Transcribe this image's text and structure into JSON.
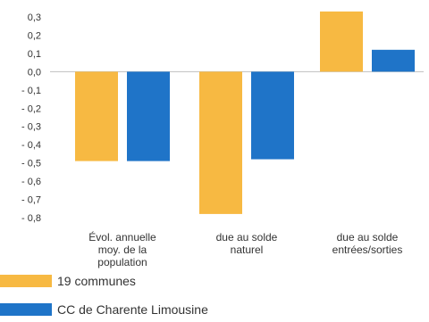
{
  "chart_data": {
    "type": "bar",
    "categories": [
      [
        "Évol. annuelle",
        "moy. de la",
        "population"
      ],
      [
        "due au solde",
        "naturel"
      ],
      [
        "due au solde",
        "entrées/sorties"
      ]
    ],
    "series": [
      {
        "name": "19 communes",
        "color": "#F7B942",
        "values": [
          -0.49,
          -0.78,
          0.33
        ]
      },
      {
        "name": "CC de Charente Limousine",
        "color": "#1F74C8",
        "values": [
          -0.49,
          -0.48,
          0.12
        ]
      }
    ],
    "y_ticks": [
      "0,3",
      "0,2",
      "0,1",
      "0,0",
      "- 0,1",
      "- 0,2",
      "- 0,3",
      "- 0,4",
      "- 0,5",
      "- 0,6",
      "- 0,7",
      "- 0,8"
    ],
    "y_tick_values": [
      0.3,
      0.2,
      0.1,
      0.0,
      -0.1,
      -0.2,
      -0.3,
      -0.4,
      -0.5,
      -0.6,
      -0.7,
      -0.8
    ],
    "ylim": [
      -0.8,
      0.3
    ],
    "grid": false,
    "legend_position": "bottom-left"
  }
}
